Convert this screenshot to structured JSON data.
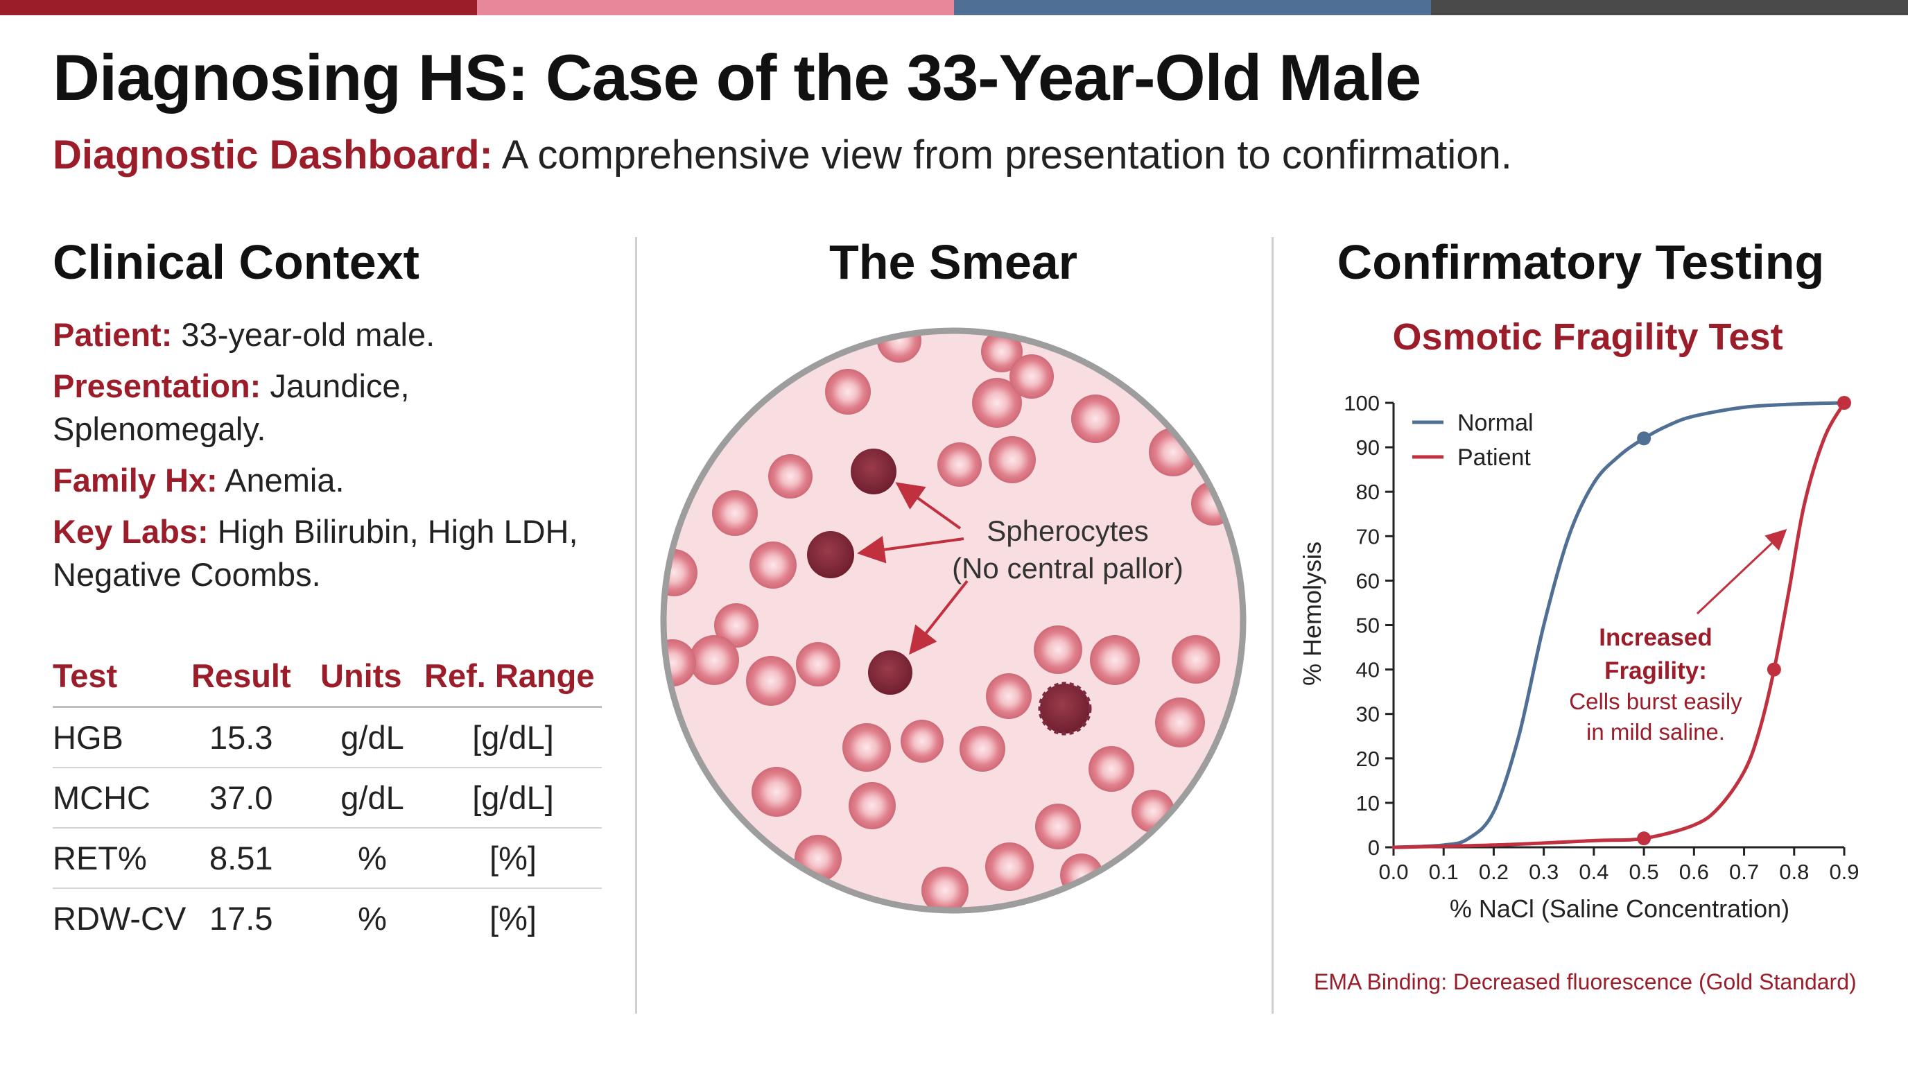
{
  "header": {
    "title": "Diagnosing HS: Case of the 33-Year-Old Male",
    "subtitle_lead": "Diagnostic Dashboard:",
    "subtitle_text": "A comprehensive view from presentation to confirmation.",
    "band_colors": [
      "#9c1d2a",
      "#e8879a",
      "#4f6f94",
      "#4a4a4a"
    ]
  },
  "clinical": {
    "heading": "Clinical Context",
    "patient_label": "Patient:",
    "patient_value": "33-year-old male.",
    "presentation_label": "Presentation:",
    "presentation_value": "Jaundice, Splenomegaly.",
    "family_label": "Family Hx:",
    "family_value": "Anemia.",
    "labs_label": "Key Labs:",
    "labs_value": "High Bilirubin, High LDH, Negative Coombs.",
    "table": {
      "headers": [
        "Test",
        "Result",
        "Units",
        "Ref. Range"
      ],
      "rows": [
        [
          "HGB",
          "15.3",
          "g/dL",
          "[g/dL]"
        ],
        [
          "MCHC",
          "37.0",
          "g/dL",
          "[g/dL]"
        ],
        [
          "RET%",
          "8.51",
          "%",
          "[%]"
        ],
        [
          "RDW-CV",
          "17.5",
          "%",
          "[%]"
        ]
      ]
    }
  },
  "smear": {
    "heading": "The Smear",
    "label_line1": "Spherocytes",
    "label_line2": "(No central pallor)"
  },
  "confirm": {
    "heading": "Confirmatory Testing",
    "footnote": "EMA Binding: Decreased fluorescence (Gold Standard)"
  },
  "chart_data": {
    "type": "line",
    "title": "Osmotic Fragility Test",
    "xlabel": "% NaCl (Saline Concentration)",
    "ylabel": "% Hemolysis",
    "xlim": [
      0.0,
      0.9
    ],
    "ylim": [
      0,
      100
    ],
    "x_ticks": [
      "0.0",
      "0.1",
      "0.2",
      "0.3",
      "0.4",
      "0.5",
      "0.6",
      "0.7",
      "0.8",
      "0.9"
    ],
    "y_ticks": [
      "0",
      "10",
      "20",
      "30",
      "40",
      "50",
      "60",
      "70",
      "80",
      "90",
      "100"
    ],
    "legend_position": "top-left",
    "series": [
      {
        "name": "Normal",
        "color": "#4f6f94",
        "x": [
          0.0,
          0.1,
          0.15,
          0.2,
          0.25,
          0.3,
          0.35,
          0.4,
          0.45,
          0.5,
          0.55,
          0.6,
          0.7,
          0.8,
          0.9
        ],
        "y": [
          0,
          0.5,
          2,
          8,
          25,
          50,
          70,
          82,
          88,
          92,
          95,
          97,
          99,
          99.7,
          100
        ],
        "markers_x": [
          0.5
        ],
        "markers_y": [
          92
        ]
      },
      {
        "name": "Patient",
        "color": "#c0303e",
        "x": [
          0.0,
          0.2,
          0.4,
          0.5,
          0.6,
          0.65,
          0.7,
          0.73,
          0.76,
          0.79,
          0.82,
          0.86,
          0.9
        ],
        "y": [
          0,
          0.5,
          1.5,
          2,
          5,
          9,
          17,
          26,
          40,
          58,
          77,
          92,
          100
        ],
        "markers_x": [
          0.5,
          0.76,
          0.9
        ],
        "markers_y": [
          2,
          40,
          100
        ]
      }
    ],
    "annotation": {
      "heading_line1": "Increased",
      "heading_line2": "Fragility:",
      "body_line1": "Cells burst easily",
      "body_line2": "in mild saline."
    }
  }
}
